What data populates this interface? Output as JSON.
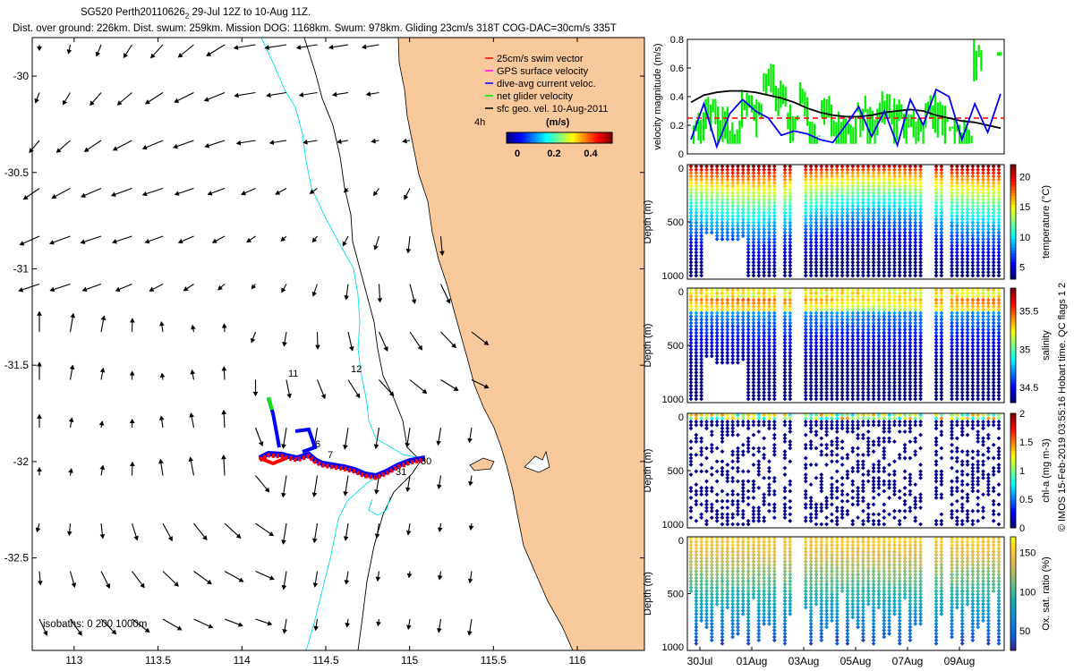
{
  "header": {
    "title_line1": "SG520 Perth20110626",
    "title_subscript": "2",
    "title_line1_suffix": " 29-Jul 12Z to 10-Aug 11Z.",
    "title_line2": "Dist. over ground: 226km. Dist. swum: 259km. Mission DOG: 1168km. Swum: 978km. Gliding 23cm/s 318T COG-DAC=30cm/s 335T"
  },
  "colors": {
    "land": "#f9c89b",
    "swim_vector": "#ff0000",
    "gps_velocity": "#ff00ff",
    "dive_avg_current": "#0000ff",
    "net_glider_velocity": "#00ee00",
    "sfc_geo_vel": "#000000",
    "isobath_0": "#000000",
    "isobath_200": "#00e0f0",
    "isobath_1000": "#000000"
  },
  "map_legend": {
    "items": [
      {
        "label": "25cm/s swim vector",
        "color": "#ff0000"
      },
      {
        "label": "GPS surface velocity",
        "color": "#ff00ff"
      },
      {
        "label": "dive-avg current veloc.",
        "color": "#0000ff"
      },
      {
        "label": "net glider velocity",
        "color": "#00ee00"
      },
      {
        "label": "sfc geo. vel. 10-Aug-2011",
        "color": "#000000"
      }
    ],
    "time_label": "4h",
    "colorbar_unit": "(m/s)",
    "colorbar_ticks": [
      "0",
      "0.2",
      "0.4"
    ]
  },
  "isobaths_label": "isobaths: 0   200   1000m",
  "track_labels": [
    "11",
    "12",
    "6",
    "7",
    "31",
    "30"
  ],
  "footer_credit": "© IMOS 15-Feb-2019 03:55:16 Hobart time. QC flags 1  2",
  "chart_data": [
    {
      "type": "map",
      "name": "glider track map",
      "x_ticks": [
        "113",
        "113.5",
        "114",
        "114.5",
        "115",
        "115.5",
        "116"
      ],
      "x_values": [
        113,
        113.5,
        114,
        114.5,
        115,
        115.5,
        116
      ],
      "y_ticks": [
        "-30",
        "-30.5",
        "-31",
        "-31.5",
        "-32",
        "-32.5"
      ],
      "y_values": [
        -30,
        -30.5,
        -31,
        -31.5,
        -32,
        -32.5
      ],
      "xlim": [
        112.75,
        116.4
      ],
      "ylim": [
        -32.98,
        -29.8
      ]
    },
    {
      "type": "line",
      "name": "velocity magnitude",
      "ylabel": "velocity magnitude (m/s)",
      "y_ticks": [
        "0",
        "0.2",
        "0.4",
        "0.6",
        "0.8"
      ],
      "ylim": [
        0,
        0.8
      ],
      "reference_line": 0.25,
      "series": [
        {
          "name": "sfc geo. vel.",
          "color": "#000000",
          "values": [
            0.36,
            0.41,
            0.43,
            0.44,
            0.44,
            0.43,
            0.41,
            0.39,
            0.36,
            0.32,
            0.29,
            0.27,
            0.26,
            0.26,
            0.27,
            0.29,
            0.3,
            0.31,
            0.3,
            0.27,
            0.25,
            0.23,
            0.22,
            0.2,
            0.18
          ]
        },
        {
          "name": "dive-avg current",
          "color": "#0000ff",
          "values": [
            0.1,
            0.35,
            0.05,
            0.28,
            0.38,
            0.3,
            0.25,
            0.13,
            0.16,
            0.14,
            0.1,
            0.08,
            0.2,
            0.33,
            0.12,
            0.3,
            0.06,
            0.38,
            0.2,
            0.45,
            0.4,
            0.1,
            0.35,
            0.15,
            0.42
          ]
        },
        {
          "name": "net glider velocity",
          "color": "#00ee00",
          "values": [
            0.2,
            0.3,
            0.22,
            0.12,
            0.36,
            0.3,
            0.52,
            0.4,
            0.25,
            0.38,
            0.12,
            0.3,
            0.22,
            0.18,
            0.3,
            0.21,
            0.33,
            0.27,
            0.22,
            0.16,
            0.33,
            0.25,
            0.18,
            0.12,
            0.7
          ]
        }
      ]
    },
    {
      "type": "heatmap",
      "name": "temperature",
      "ylabel": "Depth (m)",
      "y_ticks": [
        "0",
        "500",
        "1000"
      ],
      "colorbar_label": "temperature (°C)",
      "colorbar_ticks": [
        "5",
        "10",
        "15",
        "20"
      ],
      "clim": [
        3,
        22
      ]
    },
    {
      "type": "heatmap",
      "name": "salinity",
      "ylabel": "Depth (m)",
      "y_ticks": [
        "0",
        "500",
        "1000"
      ],
      "colorbar_label": "salinity",
      "colorbar_ticks": [
        "34.5",
        "35",
        "35.5"
      ],
      "clim": [
        34.3,
        35.8
      ]
    },
    {
      "type": "heatmap",
      "name": "chl-a",
      "ylabel": "Depth (m)",
      "y_ticks": [
        "0",
        "500",
        "1000"
      ],
      "colorbar_label": "chl-a (mg m-3)",
      "colorbar_ticks": [
        "0",
        "0.5",
        "1",
        "1.5",
        "2"
      ],
      "clim": [
        0,
        2
      ]
    },
    {
      "type": "heatmap",
      "name": "oxygen saturation",
      "ylabel": "Depth (m)",
      "y_ticks": [
        "0",
        "500",
        "1000"
      ],
      "colorbar_label": "Ox. sat. ratio (%)",
      "colorbar_ticks": [
        "50",
        "100",
        "150"
      ],
      "clim": [
        25,
        170
      ],
      "x_ticks": [
        "30Jul",
        "01Aug",
        "03Aug",
        "05Aug",
        "07Aug",
        "09Aug"
      ]
    }
  ]
}
